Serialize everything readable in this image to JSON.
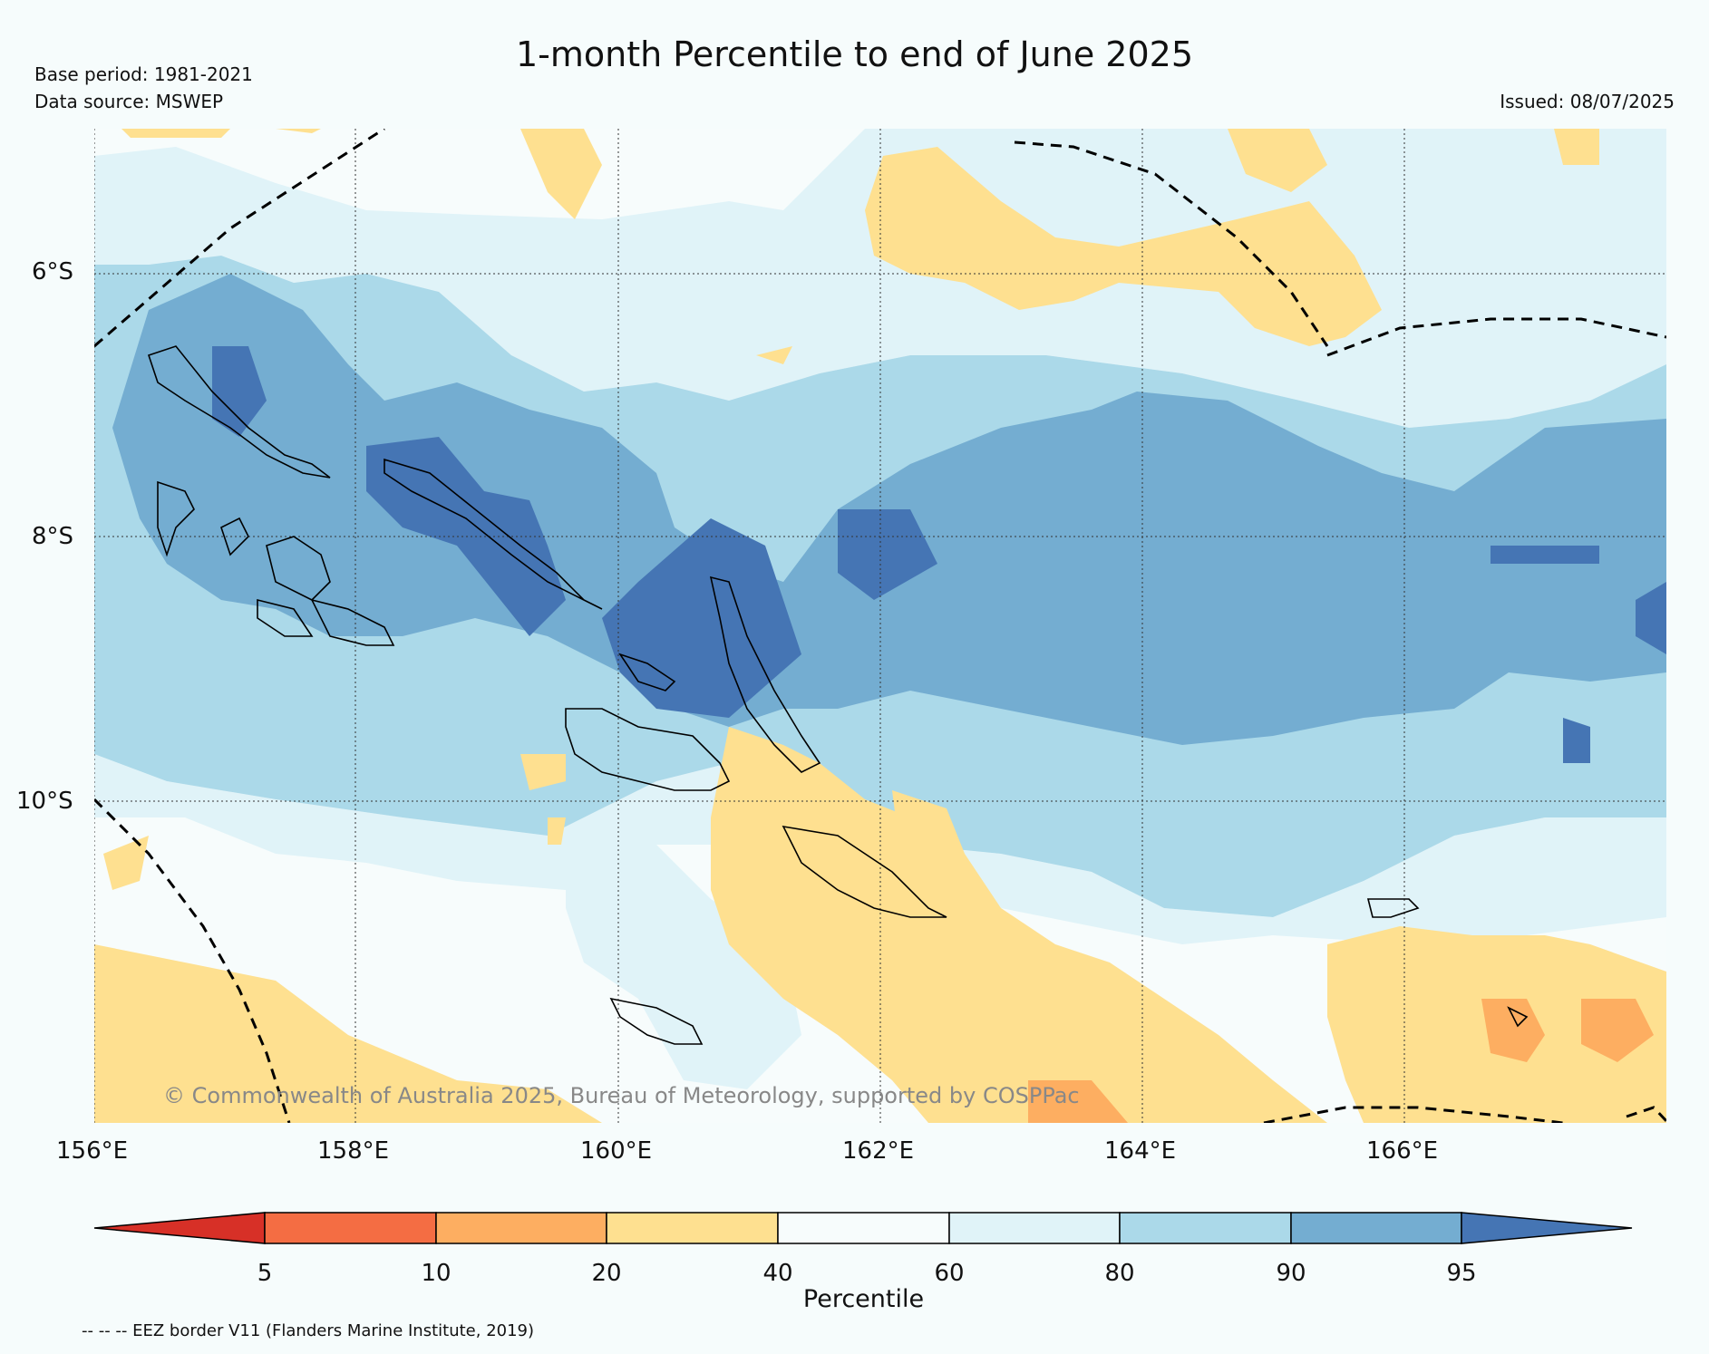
{
  "title": "1-month Percentile to end of June 2025",
  "base_period": "Base period: 1981-2021",
  "data_source": "Data source: MSWEP",
  "issued": "Issued: 08/07/2025",
  "copyright": "© Commonwealth of Australia 2025, Bureau of Meteorology, supported by COSPPac",
  "eez_note": "-- -- -- EEZ border V11 (Flanders Marine Institute, 2019)",
  "lat_labels": [
    "6°S",
    "8°S",
    "10°S"
  ],
  "lon_labels": [
    "156°E",
    "158°E",
    "160°E",
    "162°E",
    "164°E",
    "166°E"
  ],
  "colorbar": {
    "label": "Percentile",
    "ticks": [
      "5",
      "10",
      "20",
      "40",
      "60",
      "80",
      "90",
      "95"
    ],
    "colors": [
      "#d73027",
      "#f46d43",
      "#fdae61",
      "#fee090",
      "#f7fcfc",
      "#e0f3f8",
      "#abd9e9",
      "#74add1",
      "#4575b4"
    ]
  },
  "colors": {
    "background": "#f6fcfc",
    "ocean": "#f7fcfc",
    "gridline": "#333333",
    "eez_border": "#000000"
  }
}
